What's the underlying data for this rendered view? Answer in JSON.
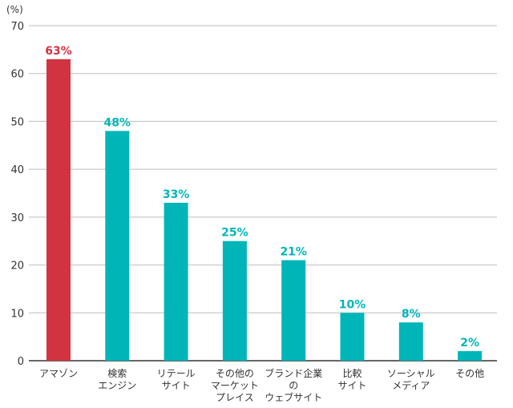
{
  "chart_data": {
    "type": "bar",
    "y_unit": "(%)",
    "ylim": [
      0,
      70
    ],
    "y_ticks": [
      "0",
      "10",
      "20",
      "30",
      "40",
      "50",
      "60",
      "70"
    ],
    "grid": true,
    "categories": [
      [
        "アマゾン"
      ],
      [
        "検索",
        "エンジン"
      ],
      [
        "リテール",
        "サイト"
      ],
      [
        "その他の",
        "マーケット",
        "プレイス"
      ],
      [
        "ブランド企業",
        "の",
        "ウェブサイト"
      ],
      [
        "比較",
        "サイト"
      ],
      [
        "ソーシャル",
        "メディア"
      ],
      [
        "その他"
      ]
    ],
    "values": [
      63,
      48,
      33,
      25,
      21,
      10,
      8,
      2
    ],
    "data_labels": [
      "63%",
      "48%",
      "33%",
      "25%",
      "21%",
      "10%",
      "8%",
      "2%"
    ],
    "colors": {
      "highlight": "#d13440",
      "bar": "#00b5b8",
      "grid": "#bdbdbd",
      "axis": "#333333"
    },
    "highlight_index": 0
  }
}
